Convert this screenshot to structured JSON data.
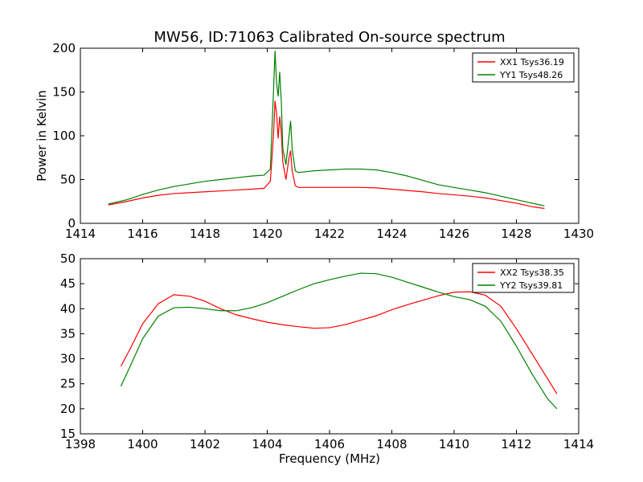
{
  "figure": {
    "title": "MW56, ID:71063 Calibrated On-source spectrum"
  },
  "colors": {
    "XX": "#ff0000",
    "YY": "#008000",
    "axes": "#000000",
    "background": "#ffffff"
  },
  "chart_data": [
    {
      "type": "line",
      "title": "MW56, ID:71063 Calibrated On-source spectrum",
      "xlabel": "",
      "ylabel": "Power in Kelvin",
      "xlim": [
        1414,
        1430
      ],
      "ylim": [
        0,
        200
      ],
      "xticks": [
        1414,
        1416,
        1418,
        1420,
        1422,
        1424,
        1426,
        1428,
        1430
      ],
      "yticks": [
        0,
        50,
        100,
        150,
        200
      ],
      "grid": false,
      "legend": "top-right",
      "series": [
        {
          "name": "XX1 Tsys36.19",
          "color": "#ff0000",
          "x": [
            1414.9,
            1415.5,
            1416.0,
            1416.5,
            1417.0,
            1417.5,
            1418.0,
            1418.5,
            1419.0,
            1419.5,
            1419.9,
            1420.1,
            1420.2,
            1420.25,
            1420.3,
            1420.35,
            1420.4,
            1420.45,
            1420.5,
            1420.6,
            1420.7,
            1420.75,
            1420.8,
            1420.9,
            1421.0,
            1421.5,
            1422.0,
            1422.5,
            1423.0,
            1423.5,
            1424.0,
            1424.5,
            1425.0,
            1425.5,
            1426.0,
            1426.5,
            1427.0,
            1427.5,
            1428.0,
            1428.5,
            1428.9
          ],
          "y": [
            21,
            25,
            29,
            32,
            34,
            35,
            36,
            37,
            38,
            39,
            40,
            48,
            100,
            140,
            125,
            97,
            122,
            105,
            70,
            50,
            75,
            83,
            60,
            43,
            41,
            41,
            41,
            41,
            41,
            40.5,
            39,
            37.5,
            36,
            34,
            32.5,
            31,
            29,
            26,
            23,
            19,
            17
          ]
        },
        {
          "name": "YY1 Tsys48.26",
          "color": "#008000",
          "x": [
            1414.9,
            1415.5,
            1416.0,
            1416.5,
            1417.0,
            1417.5,
            1418.0,
            1418.5,
            1419.0,
            1419.5,
            1419.9,
            1420.1,
            1420.2,
            1420.25,
            1420.3,
            1420.35,
            1420.4,
            1420.45,
            1420.5,
            1420.6,
            1420.7,
            1420.75,
            1420.8,
            1420.9,
            1421.0,
            1421.5,
            1422.0,
            1422.5,
            1423.0,
            1423.5,
            1424.0,
            1424.5,
            1425.0,
            1425.5,
            1426.0,
            1426.5,
            1427.0,
            1427.5,
            1428.0,
            1428.5,
            1428.9
          ],
          "y": [
            22,
            27,
            33,
            38,
            42,
            45,
            48,
            50,
            52,
            54,
            55,
            62,
            150,
            197,
            160,
            145,
            173,
            140,
            85,
            67,
            100,
            117,
            85,
            60,
            58,
            60,
            61,
            62,
            62,
            61,
            58,
            54,
            49,
            44,
            41,
            38,
            35,
            31,
            27,
            23,
            20
          ]
        }
      ]
    },
    {
      "type": "line",
      "title": "",
      "xlabel": "Frequency (MHz)",
      "ylabel": "",
      "xlim": [
        1398,
        1414
      ],
      "ylim": [
        15,
        50
      ],
      "xticks": [
        1398,
        1400,
        1402,
        1404,
        1406,
        1408,
        1410,
        1412,
        1414
      ],
      "yticks": [
        15,
        20,
        25,
        30,
        35,
        40,
        45,
        50
      ],
      "grid": false,
      "legend": "top-right",
      "series": [
        {
          "name": "XX2 Tsys38.35",
          "color": "#ff0000",
          "x": [
            1399.3,
            1399.6,
            1400.0,
            1400.5,
            1401.0,
            1401.5,
            1402.0,
            1402.5,
            1403.0,
            1403.5,
            1404.0,
            1404.5,
            1405.0,
            1405.5,
            1406.0,
            1406.5,
            1407.0,
            1407.5,
            1408.0,
            1408.5,
            1409.0,
            1409.5,
            1410.0,
            1410.5,
            1411.0,
            1411.5,
            1412.0,
            1412.5,
            1413.0,
            1413.3
          ],
          "y": [
            28.5,
            32,
            37,
            41,
            42.8,
            42.5,
            41.5,
            40,
            38.8,
            38,
            37.3,
            36.8,
            36.4,
            36.1,
            36.2,
            36.8,
            37.7,
            38.6,
            39.8,
            40.8,
            41.7,
            42.6,
            43.3,
            43.4,
            42.7,
            40.5,
            36,
            31,
            26,
            23
          ]
        },
        {
          "name": "YY2 Tsys39.81",
          "color": "#008000",
          "x": [
            1399.3,
            1399.6,
            1400.0,
            1400.5,
            1401.0,
            1401.5,
            1402.0,
            1402.5,
            1403.0,
            1403.5,
            1404.0,
            1404.5,
            1405.0,
            1405.5,
            1406.0,
            1406.5,
            1407.0,
            1407.5,
            1408.0,
            1408.5,
            1409.0,
            1409.5,
            1410.0,
            1410.5,
            1411.0,
            1411.5,
            1412.0,
            1412.5,
            1413.0,
            1413.3
          ],
          "y": [
            24.5,
            28.5,
            34,
            38.5,
            40.2,
            40.3,
            40,
            39.6,
            39.6,
            40.2,
            41.2,
            42.5,
            43.8,
            45,
            45.8,
            46.5,
            47.1,
            47.0,
            46.3,
            45.3,
            44.3,
            43.3,
            42.4,
            41.8,
            40.5,
            37.5,
            32.5,
            27,
            22,
            20
          ]
        }
      ]
    }
  ]
}
